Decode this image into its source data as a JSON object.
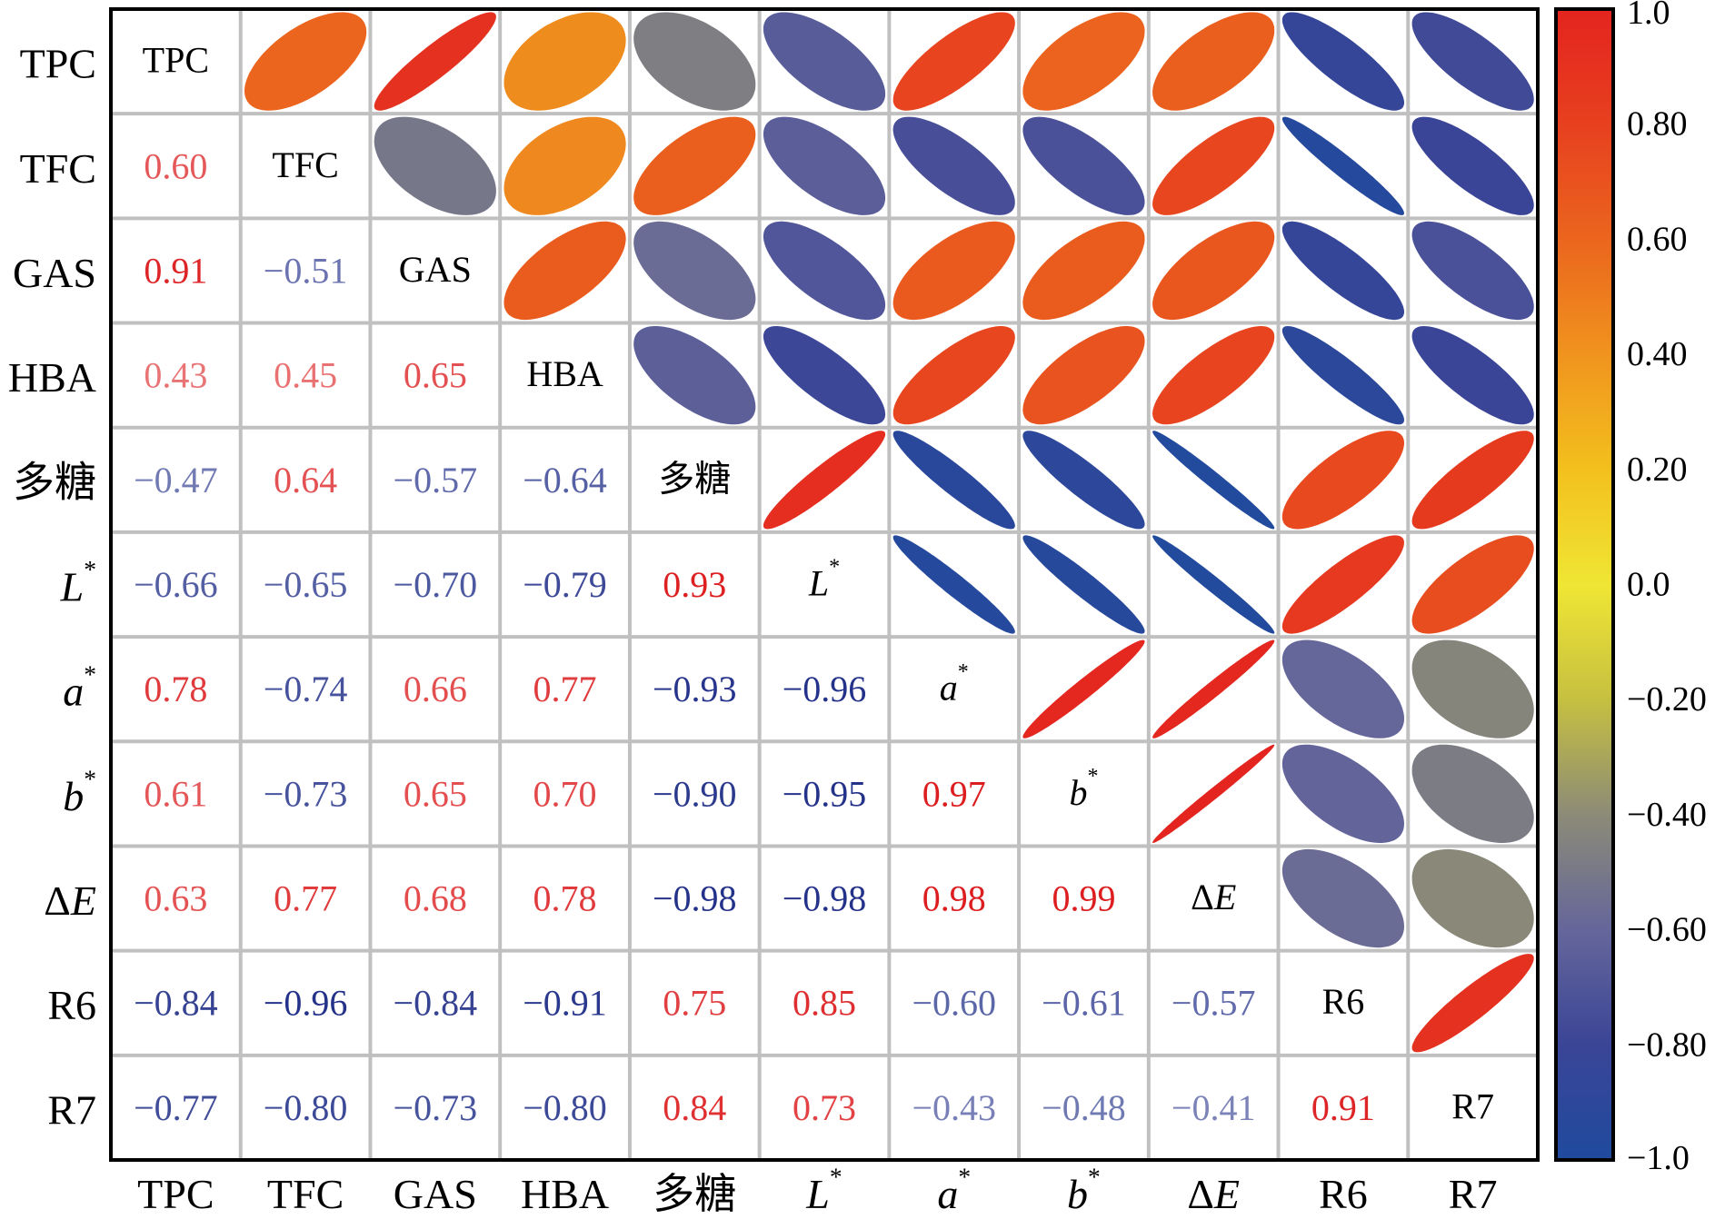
{
  "chart_data": {
    "type": "heatmap",
    "subtype": "correlation-matrix (lower: coefficients, upper: ellipses, diagonal: variable names)",
    "variables": [
      {
        "name": "TPC",
        "italic": false
      },
      {
        "name": "TFC",
        "italic": false
      },
      {
        "name": "GAS",
        "italic": false
      },
      {
        "name": "HBA",
        "italic": false
      },
      {
        "name": "多糖",
        "italic": false
      },
      {
        "name": "L",
        "sup": "*",
        "italic": true
      },
      {
        "name": "a",
        "sup": "*",
        "italic": true
      },
      {
        "name": "b",
        "sup": "*",
        "italic": true
      },
      {
        "name": "ΔE",
        "italic": false
      },
      {
        "name": "R6",
        "italic": false
      },
      {
        "name": "R7",
        "italic": false
      }
    ],
    "matrix_lower": [
      [],
      [
        "0.60"
      ],
      [
        "0.91",
        "−0.51"
      ],
      [
        "0.43",
        "0.45",
        "0.65"
      ],
      [
        "−0.47",
        "0.64",
        "−0.57",
        "−0.64"
      ],
      [
        "−0.66",
        "−0.65",
        "−0.70",
        "−0.79",
        "0.93"
      ],
      [
        "0.78",
        "−0.74",
        "0.66",
        "0.77",
        "−0.93",
        "−0.96"
      ],
      [
        "0.61",
        "−0.73",
        "0.65",
        "0.70",
        "−0.90",
        "−0.95",
        "0.97"
      ],
      [
        "0.63",
        "0.77",
        "0.68",
        "0.78",
        "−0.98",
        "−0.98",
        "0.98",
        "0.99"
      ],
      [
        "−0.84",
        "−0.96",
        "−0.84",
        "−0.91",
        "0.75",
        "0.85",
        "−0.60",
        "−0.61",
        "−0.57"
      ],
      [
        "−0.77",
        "−0.80",
        "−0.73",
        "−0.80",
        "0.84",
        "0.73",
        "−0.43",
        "−0.48",
        "−0.41",
        "0.91"
      ]
    ],
    "colorbar": {
      "range": [
        -1.0,
        1.0
      ],
      "ticks": [
        "1.0",
        "0.80",
        "0.60",
        "0.40",
        "0.20",
        "0.0",
        "−0.20",
        "−0.40",
        "−0.60",
        "−0.80",
        "−1.0"
      ],
      "tick_values": [
        1.0,
        0.8,
        0.6,
        0.4,
        0.2,
        0.0,
        -0.2,
        -0.4,
        -0.6,
        -0.8,
        -1.0
      ],
      "stops": [
        {
          "v": 1.0,
          "color": "#e4241f"
        },
        {
          "v": 0.8,
          "color": "#e7401f"
        },
        {
          "v": 0.6,
          "color": "#eb651e"
        },
        {
          "v": 0.4,
          "color": "#f0931e"
        },
        {
          "v": 0.2,
          "color": "#f3c01d"
        },
        {
          "v": 0.0,
          "color": "#f0e634"
        },
        {
          "v": -0.2,
          "color": "#c6c040"
        },
        {
          "v": -0.4,
          "color": "#8c8b77"
        },
        {
          "v": -0.6,
          "color": "#65669a"
        },
        {
          "v": -0.8,
          "color": "#3b4597"
        },
        {
          "v": -1.0,
          "color": "#1f4a9e"
        }
      ]
    },
    "grid_color": "#c0c0c0",
    "frame_color": "#000000"
  }
}
